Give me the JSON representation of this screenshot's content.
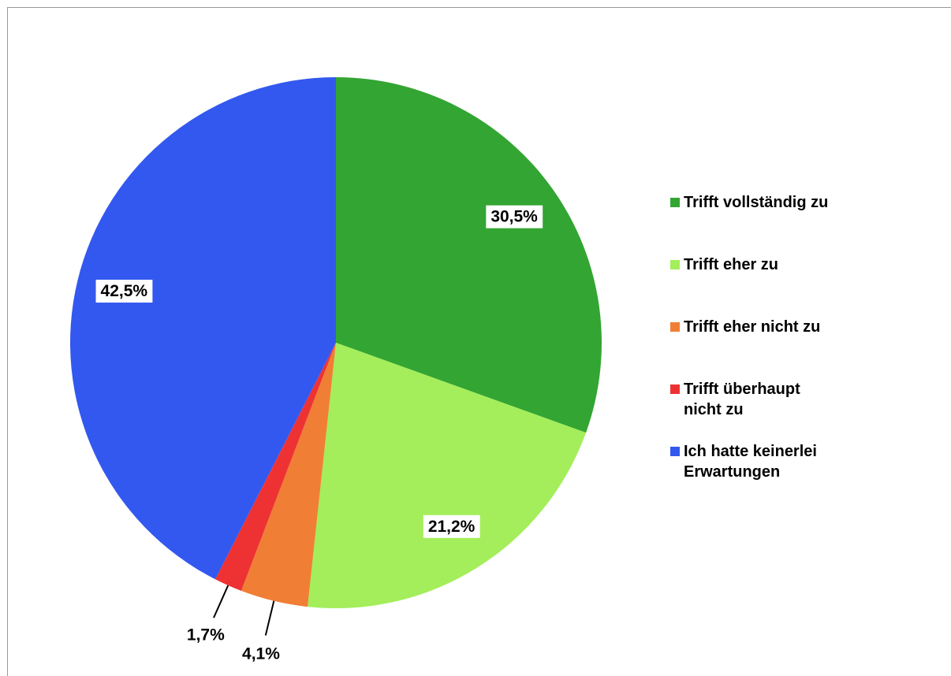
{
  "chart_data": {
    "type": "pie",
    "categories": [
      "Trifft vollständig zu",
      "Trifft eher zu",
      "Trifft eher nicht zu",
      "Trifft überhaupt nicht zu",
      "Ich hatte keinerlei Erwartungen"
    ],
    "values": [
      30.5,
      21.2,
      4.1,
      1.7,
      42.5
    ],
    "value_labels": [
      "30,5%",
      "21,2%",
      "4,1%",
      "1,7%",
      "42,5%"
    ],
    "colors": [
      "#33a532",
      "#a3ee5a",
      "#f07e35",
      "#ee3233",
      "#3358ef"
    ],
    "legend": "right"
  }
}
